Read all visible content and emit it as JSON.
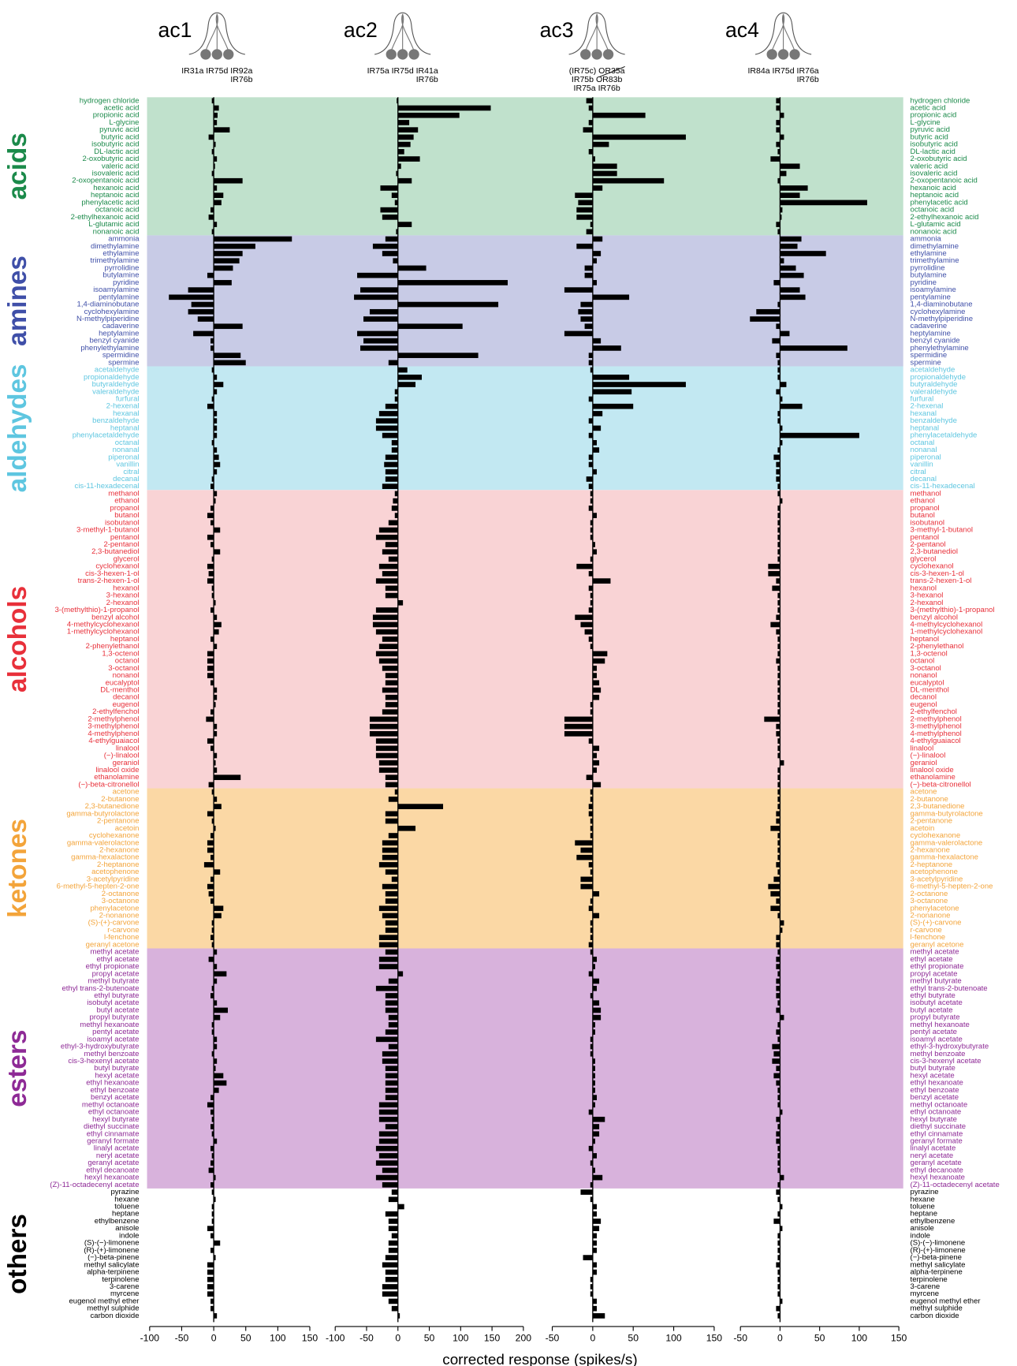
{
  "chart_data": {
    "type": "bar",
    "orientation": "horizontal",
    "x_label": "corrected response (spikes/s)",
    "bar_color": "#000000",
    "groups": [
      {
        "name": "acids",
        "color": "#1b8a4a",
        "background": "#c0e1cc",
        "categories": [
          "hydrogen chloride",
          "acetic acid",
          "propionic acid",
          "L-glycine",
          "pyruvic acid",
          "butyric acid",
          "isobutyric acid",
          "DL-lactic acid",
          "2-oxobutyric acid",
          "valeric acid",
          "isovaleric acid",
          "2-oxopentanoic acid",
          "hexanoic acid",
          "heptanoic acid",
          "phenylacetic acid",
          "octanoic acid",
          "2-ethylhexanoic acid",
          "L-glutamic acid",
          "nonanoic acid"
        ]
      },
      {
        "name": "amines",
        "color": "#3f4fa8",
        "background": "#c8cbe6",
        "categories": [
          "ammonia",
          "dimethylamine",
          "ethylamine",
          "trimethylamine",
          "pyrrolidine",
          "butylamine",
          "pyridine",
          "isoamylamine",
          "pentylamine",
          "1,4-diaminobutane",
          "cyclohexylamine",
          "N-methylpiperidine",
          "cadaverine",
          "heptylamine",
          "benzyl cyanide",
          "phenylethylamine",
          "spermidine",
          "spermine"
        ]
      },
      {
        "name": "aldehydes",
        "color": "#5ec6e0",
        "background": "#c2e8f2",
        "categories": [
          "acetaldehyde",
          "propionaldehyde",
          "butyraldehyde",
          "valeraldehyde",
          "furfural",
          "2-hexenal",
          "hexanal",
          "benzaldehyde",
          "heptanal",
          "phenylacetaldehyde",
          "octanal",
          "nonanal",
          "piperonal",
          "vanillin",
          "citral",
          "decanal",
          "cis-11-hexadecenal"
        ]
      },
      {
        "name": "alcohols",
        "color": "#e8303a",
        "background": "#f9d3d5",
        "categories": [
          "methanol",
          "ethanol",
          "propanol",
          "butanol",
          "isobutanol",
          "3-methyl-1-butanol",
          "pentanol",
          "2-pentanol",
          "2,3-butanediol",
          "glycerol",
          "cyclohexanol",
          "cis-3-hexen-1-ol",
          "trans-2-hexen-1-ol",
          "hexanol",
          "3-hexanol",
          "2-hexanol",
          "3-(methylthio)-1-propanol",
          "benzyl alcohol",
          "4-methylcyclohexanol",
          "1-methylcyclohexanol",
          "heptanol",
          "2-phenylethanol",
          "1,3-octenol",
          "octanol",
          "3-octanol",
          "nonanol",
          "eucalyptol",
          "DL-menthol",
          "decanol",
          "eugenol",
          "2-ethylfenchol",
          "2-methylphenol",
          "3-methylphenol",
          "4-methylphenol",
          "4-ethylguaiacol",
          "linalool",
          "(−)-linalool",
          "geraniol",
          "linalool oxide",
          "ethanolamine",
          "(−)-beta-citronellol"
        ]
      },
      {
        "name": "ketones",
        "color": "#f3a43a",
        "background": "#fbd8a5",
        "categories": [
          "acetone",
          "2-butanone",
          "2,3-butanedione",
          "gamma-butyrolactone",
          "2-pentanone",
          "acetoin",
          "cyclohexanone",
          "gamma-valerolactone",
          "2-hexanone",
          "gamma-hexalactone",
          "2-heptanone",
          "acetophenone",
          "3-acetylpyridine",
          "6-methyl-5-hepten-2-one",
          "2-octanone",
          "3-octanone",
          "phenylacetone",
          "2-nonanone",
          "(S)-(+)-carvone",
          "r-carvone",
          "l-fenchone",
          "geranyl acetone"
        ]
      },
      {
        "name": "esters",
        "color": "#8e2a96",
        "background": "#d8b2dc",
        "categories": [
          "methyl acetate",
          "ethyl acetate",
          "ethyl propionate",
          "propyl acetate",
          "methyl butyrate",
          "ethyl trans-2-butenoate",
          "ethyl butyrate",
          "isobutyl acetate",
          "butyl acetate",
          "propyl butyrate",
          "methyl hexanoate",
          "pentyl acetate",
          "isoamyl acetate",
          "ethyl-3-hydroxybutyrate",
          "methyl benzoate",
          "cis-3-hexenyl acetate",
          "butyl butyrate",
          "hexyl acetate",
          "ethyl hexanoate",
          "ethyl benzoate",
          "benzyl acetate",
          "methyl octanoate",
          "ethyl octanoate",
          "hexyl butyrate",
          "diethyl succinate",
          "ethyl cinnamate",
          "geranyl formate",
          "linalyl acetate",
          "neryl acetate",
          "geranyl acetate",
          "ethyl decanoate",
          "hexyl hexanoate",
          "(Z)-11-octadecenyl acetate"
        ]
      },
      {
        "name": "others",
        "color": "#000000",
        "background": "#ffffff",
        "categories": [
          "pyrazine",
          "hexane",
          "toluene",
          "heptane",
          "ethylbenzene",
          "anisole",
          "indole",
          "(S)-(−)-limonene",
          "(R)-(+)-limonene",
          "(−)-beta-pinene",
          "methyl salicylate",
          "alpha-terpinene",
          "terpinolene",
          "3-carene",
          "myrcene",
          "eugenol methyl ether",
          "methyl sulphide",
          "carbon dioxide"
        ]
      }
    ],
    "panels": [
      {
        "name": "ac1",
        "receptors": [
          "IR31a IR75d IR92a",
          "IR76b"
        ],
        "xlim": [
          -100,
          150
        ],
        "xticks": [
          -100,
          -50,
          0,
          50,
          100,
          150
        ],
        "values": [
          [
            -3,
            8,
            6,
            5,
            25,
            -8,
            3,
            -3,
            5,
            2,
            -3,
            45,
            5,
            15,
            12,
            -5,
            -8,
            5,
            -3
          ],
          [
            122,
            65,
            45,
            40,
            30,
            -10,
            28,
            -40,
            -70,
            -35,
            -40,
            -25,
            45,
            -32,
            -5,
            -5,
            42,
            50
          ],
          [
            -3,
            5,
            15,
            5,
            -3,
            -10,
            5,
            5,
            5,
            5,
            -3,
            5,
            8,
            10,
            5,
            -3,
            -5
          ],
          [
            5,
            3,
            -5,
            -10,
            -5,
            10,
            -10,
            -5,
            10,
            -3,
            -10,
            -8,
            -10,
            -3,
            -3,
            3,
            -5,
            5,
            12,
            8,
            -5,
            5,
            -10,
            -10,
            -10,
            -10,
            -5,
            5,
            5,
            3,
            -5,
            -12,
            5,
            5,
            -10,
            -5,
            5,
            3,
            5,
            42,
            -8
          ],
          [
            -3,
            5,
            12,
            -10,
            -3,
            3,
            -5,
            -10,
            -10,
            -5,
            -15,
            10,
            -5,
            -10,
            -8,
            -5,
            15,
            12,
            -3,
            -3,
            -5,
            -3
          ],
          [
            5,
            -8,
            5,
            20,
            5,
            -3,
            -5,
            5,
            22,
            10,
            -3,
            -3,
            5,
            5,
            -3,
            5,
            3,
            15,
            20,
            8,
            -5,
            -10,
            -5,
            -3,
            -5,
            -3,
            5,
            -5,
            -3,
            -5,
            -8,
            3,
            -5
          ],
          [
            -3,
            3,
            -3,
            -3,
            -3,
            -10,
            -5,
            10,
            -5,
            3,
            -10,
            -10,
            -10,
            -10,
            -10,
            -5,
            -5,
            5
          ]
        ]
      },
      {
        "name": "ac2",
        "receptors": [
          "IR75a IR75d IR41a",
          "IR76b"
        ],
        "xlim": [
          -100,
          200
        ],
        "xticks": [
          -100,
          -50,
          0,
          50,
          100,
          150,
          200
        ],
        "values": [
          [
            -2,
            148,
            98,
            18,
            32,
            25,
            20,
            10,
            35,
            5,
            -3,
            22,
            -28,
            -10,
            -5,
            -28,
            -25,
            22,
            -3
          ],
          [
            -20,
            -40,
            -25,
            -8,
            45,
            -65,
            175,
            -60,
            -70,
            160,
            -45,
            -55,
            103,
            -65,
            -55,
            -60,
            128,
            -15
          ],
          [
            15,
            38,
            28,
            -5,
            -5,
            -20,
            -30,
            -35,
            -35,
            -25,
            -10,
            -10,
            -20,
            -22,
            -20,
            -20,
            -25
          ],
          [
            -5,
            -8,
            -10,
            -5,
            -15,
            -30,
            -35,
            -20,
            -25,
            -15,
            -30,
            -25,
            -35,
            -20,
            -20,
            8,
            -35,
            -40,
            -40,
            -35,
            -25,
            -30,
            -35,
            -30,
            -25,
            -20,
            -20,
            -25,
            -20,
            -20,
            -25,
            -45,
            -45,
            -45,
            -35,
            -35,
            -35,
            -30,
            -30,
            -20,
            -20
          ],
          [
            -5,
            -15,
            72,
            -20,
            -20,
            28,
            -15,
            -25,
            -25,
            -25,
            -30,
            -20,
            -10,
            -25,
            -20,
            -20,
            -30,
            -25,
            -20,
            -20,
            -30,
            -30
          ],
          [
            -20,
            -30,
            -30,
            8,
            -15,
            -35,
            -20,
            -20,
            -20,
            -15,
            -15,
            -20,
            -35,
            -15,
            -25,
            -25,
            -20,
            -20,
            -20,
            -20,
            -20,
            -30,
            -30,
            -30,
            -20,
            -30,
            -30,
            -35,
            -30,
            -35,
            -25,
            -35,
            -25
          ],
          [
            -10,
            -15,
            10,
            -20,
            -15,
            -15,
            -10,
            -15,
            -15,
            -20,
            -25,
            -20,
            -20,
            -25,
            -25,
            -15,
            -10,
            3
          ]
        ]
      },
      {
        "name": "ac3",
        "receptors": [
          "(IR75c)  OR35a",
          "IR75b  OR83b",
          "IR75a  IR76b"
        ],
        "xlim": [
          -50,
          150
        ],
        "xticks": [
          -50,
          0,
          50,
          100,
          150
        ],
        "values": [
          [
            -8,
            -5,
            65,
            -5,
            -12,
            115,
            20,
            -5,
            3,
            30,
            30,
            88,
            12,
            -22,
            -18,
            -20,
            -20,
            -3,
            -8
          ],
          [
            12,
            -20,
            10,
            5,
            -10,
            -10,
            5,
            -35,
            45,
            -15,
            -18,
            -15,
            -10,
            -35,
            10,
            35,
            -5,
            -5
          ],
          [
            -3,
            45,
            115,
            48,
            -5,
            50,
            12,
            -5,
            10,
            -5,
            5,
            8,
            -5,
            -5,
            5,
            -8,
            -5
          ],
          [
            -3,
            -3,
            -5,
            5,
            -3,
            -3,
            -3,
            3,
            5,
            -3,
            -20,
            -5,
            22,
            -5,
            -3,
            -3,
            -5,
            -22,
            -15,
            -10,
            -5,
            -3,
            18,
            15,
            5,
            5,
            8,
            10,
            8,
            -3,
            -3,
            -35,
            -35,
            -35,
            -5,
            8,
            5,
            8,
            5,
            -8,
            10
          ],
          [
            -3,
            -3,
            -5,
            -5,
            -3,
            -3,
            -3,
            -22,
            -15,
            -20,
            -5,
            -3,
            -15,
            -15,
            8,
            -3,
            -5,
            8,
            -3,
            -3,
            -3,
            -5
          ],
          [
            -3,
            5,
            3,
            -5,
            8,
            5,
            -3,
            8,
            10,
            10,
            3,
            3,
            -3,
            -3,
            -3,
            3,
            3,
            3,
            3,
            3,
            5,
            3,
            -5,
            15,
            8,
            8,
            3,
            -5,
            5,
            -3,
            3,
            12,
            -3
          ],
          [
            -15,
            -3,
            5,
            5,
            10,
            8,
            5,
            5,
            5,
            -12,
            5,
            5,
            -3,
            -3,
            -3,
            5,
            5,
            15
          ]
        ]
      },
      {
        "name": "ac4",
        "receptors": [
          "IR84a IR75d IR76a",
          "IR76b"
        ],
        "xlim": [
          -50,
          150
        ],
        "xticks": [
          -50,
          0,
          50,
          100,
          150
        ],
        "values": [
          [
            -5,
            -5,
            5,
            -5,
            -5,
            5,
            -5,
            -3,
            -12,
            25,
            8,
            -3,
            35,
            25,
            110,
            3,
            2,
            -5,
            -3
          ],
          [
            27,
            22,
            58,
            5,
            20,
            30,
            -8,
            25,
            32,
            -3,
            -30,
            -38,
            -5,
            12,
            -10,
            85,
            -5,
            -3
          ],
          [
            -3,
            -3,
            8,
            -5,
            3,
            28,
            -3,
            -3,
            3,
            100,
            3,
            -3,
            -8,
            -5,
            -5,
            -5,
            -3
          ],
          [
            -3,
            3,
            -3,
            -3,
            -3,
            -3,
            -3,
            -3,
            -3,
            -3,
            -15,
            -15,
            -5,
            -10,
            -3,
            -3,
            -3,
            -5,
            -12,
            -5,
            -3,
            -3,
            -3,
            -5,
            -3,
            -3,
            -3,
            -3,
            -3,
            -3,
            -3,
            -20,
            -5,
            -5,
            -3,
            -3,
            -3,
            5,
            -3,
            -3,
            -3
          ],
          [
            -3,
            -3,
            -3,
            -5,
            -5,
            -12,
            -3,
            -3,
            -3,
            -3,
            -5,
            -3,
            -8,
            -15,
            -12,
            -5,
            -12,
            -3,
            5,
            3,
            -5,
            -5
          ],
          [
            -3,
            -5,
            -5,
            -3,
            -5,
            -5,
            -5,
            -3,
            -5,
            5,
            -3,
            -5,
            -3,
            -10,
            -8,
            -10,
            -5,
            -8,
            -5,
            -3,
            -3,
            -3,
            3,
            -5,
            -3,
            -5,
            -5,
            -3,
            -3,
            -3,
            -3,
            5,
            -3
          ],
          [
            -5,
            -3,
            3,
            -3,
            -8,
            3,
            -3,
            -3,
            -3,
            -3,
            -5,
            -3,
            -3,
            -3,
            -3,
            3,
            -5,
            -3
          ]
        ]
      }
    ]
  }
}
